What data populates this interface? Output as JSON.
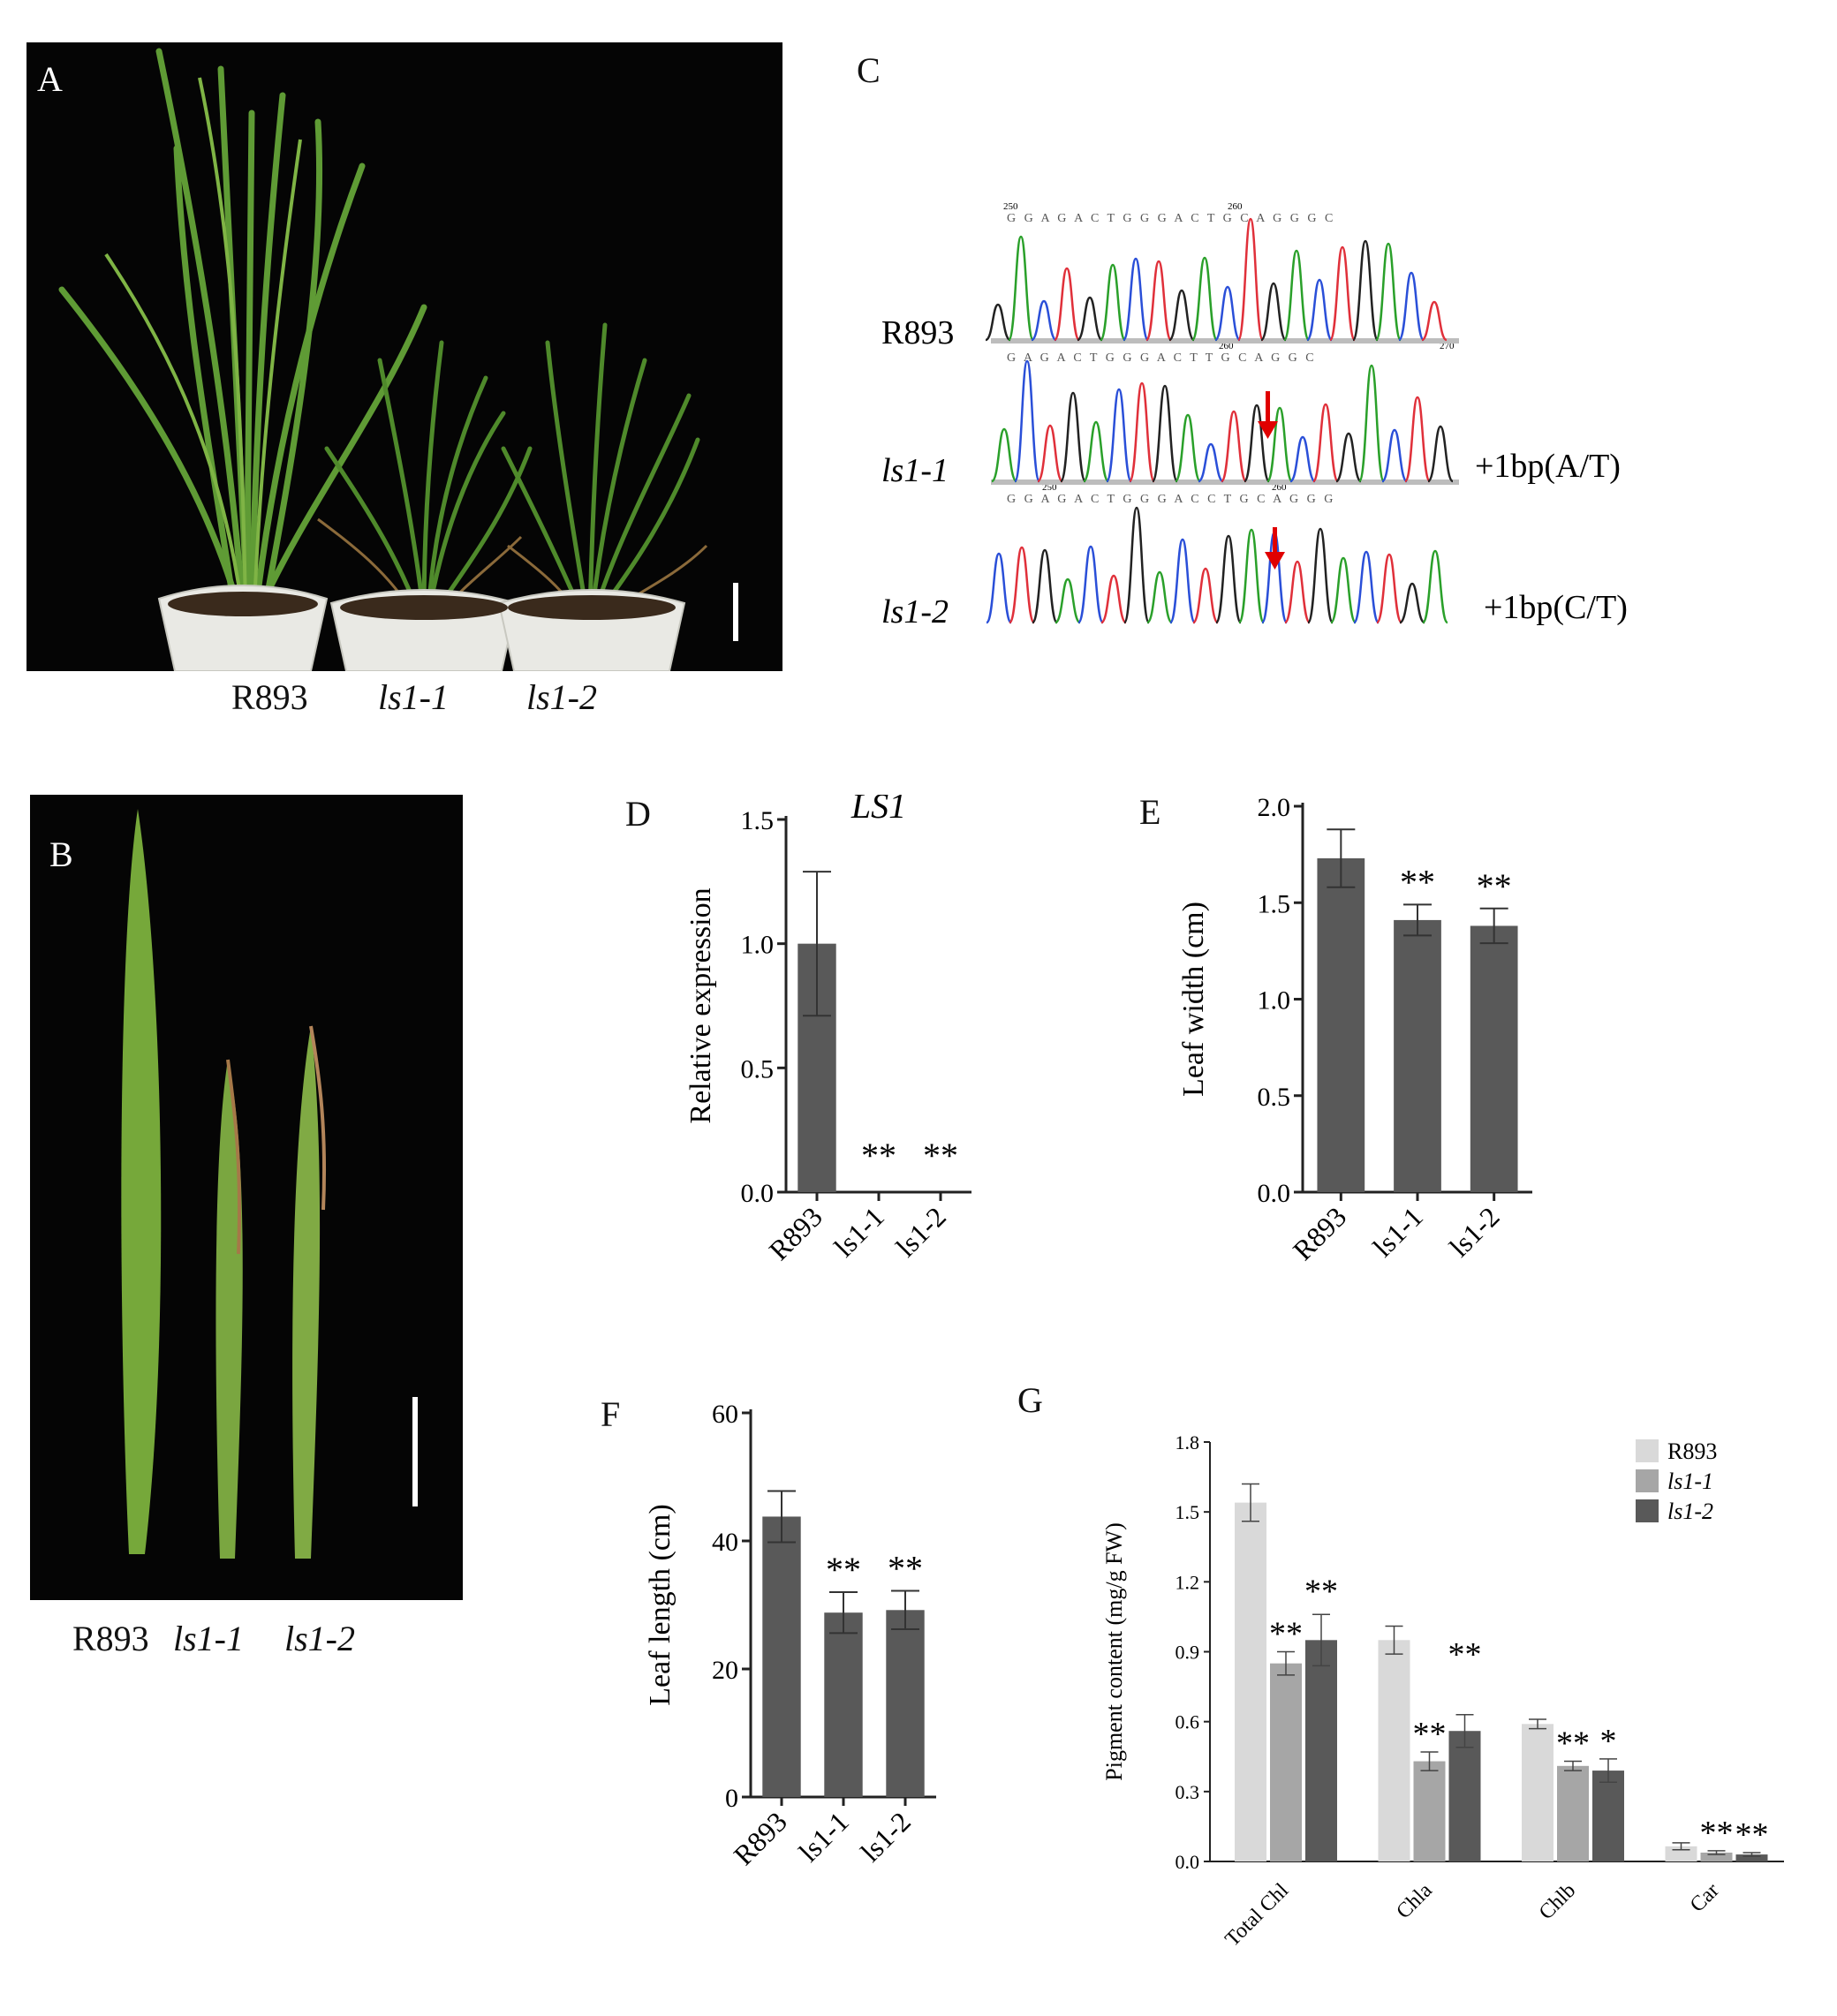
{
  "panels": {
    "A": {
      "letter": "A",
      "labels": [
        "R893",
        "ls1-1",
        "ls1-2"
      ]
    },
    "B": {
      "letter": "B",
      "labels": [
        "R893",
        "ls1-1",
        "ls1-2"
      ]
    },
    "C": {
      "letter": "C",
      "rows": [
        {
          "name": "R893",
          "seq": "G G A G A C T G G G A C T G C A G G G C",
          "pos": [
            "250",
            "260"
          ],
          "note": ""
        },
        {
          "name": "ls1-1",
          "seq": "G A G A C T G G G A C T T G C A G G C",
          "pos": [
            "260",
            "270"
          ],
          "note": "+1bp(A/T)"
        },
        {
          "name": "ls1-2",
          "seq": "G G A G A C T G G G A C C T G C A G G G",
          "pos": [
            "250",
            "260"
          ],
          "note": "+1bp(C/T)"
        }
      ]
    },
    "D": {
      "letter": "D"
    },
    "E": {
      "letter": "E"
    },
    "F": {
      "letter": "F"
    },
    "G": {
      "letter": "G"
    }
  },
  "colors": {
    "bar_dark": "#595959",
    "bar_mid": "#a6a6a6",
    "bar_light": "#d9d9d9",
    "arrow": "#e00000"
  },
  "chart_data": [
    {
      "id": "D",
      "type": "bar",
      "title": "LS1",
      "ylabel": "Relative expression",
      "categories": [
        "R893",
        "ls1-1",
        "ls1-2"
      ],
      "values": [
        1.0,
        0.0,
        0.0
      ],
      "errors": [
        0.29,
        0,
        0
      ],
      "sig": [
        "",
        "**",
        "**"
      ],
      "ylim": [
        0,
        1.5
      ],
      "yticks": [
        "0.0",
        "0.5",
        "1.0",
        "1.5"
      ]
    },
    {
      "id": "E",
      "type": "bar",
      "title": "",
      "ylabel": "Leaf width (cm)",
      "categories": [
        "R893",
        "ls1-1",
        "ls1-2"
      ],
      "values": [
        1.73,
        1.41,
        1.38
      ],
      "errors": [
        0.15,
        0.08,
        0.09
      ],
      "sig": [
        "",
        "**",
        "**"
      ],
      "ylim": [
        0,
        2.0
      ],
      "yticks": [
        "0.0",
        "0.5",
        "1.0",
        "1.5",
        "2.0"
      ]
    },
    {
      "id": "F",
      "type": "bar",
      "title": "",
      "ylabel": "Leaf length (cm)",
      "categories": [
        "R893",
        "ls1-1",
        "ls1-2"
      ],
      "values": [
        43.8,
        28.8,
        29.2
      ],
      "errors": [
        4.0,
        3.2,
        3.0
      ],
      "sig": [
        "",
        "**",
        "**"
      ],
      "ylim": [
        0,
        60
      ],
      "yticks": [
        "0",
        "20",
        "40",
        "60"
      ]
    },
    {
      "id": "G",
      "type": "bar",
      "title": "",
      "ylabel": "Pigment content (mg/g FW)",
      "categories": [
        "Total Chl",
        "Chla",
        "Chlb",
        "Car"
      ],
      "series": [
        {
          "name": "R893",
          "values": [
            1.54,
            0.95,
            0.59,
            0.065
          ],
          "errors": [
            0.08,
            0.06,
            0.02,
            0.015
          ],
          "sig": [
            "",
            "",
            "",
            ""
          ]
        },
        {
          "name": "ls1-1",
          "values": [
            0.85,
            0.43,
            0.41,
            0.038
          ],
          "errors": [
            0.05,
            0.04,
            0.02,
            0.008
          ],
          "sig": [
            "**",
            "**",
            "**",
            "**"
          ]
        },
        {
          "name": "ls1-2",
          "values": [
            0.95,
            0.56,
            0.39,
            0.03
          ],
          "errors": [
            0.11,
            0.07,
            0.05,
            0.008
          ],
          "sig": [
            "**",
            "**",
            "*",
            "**"
          ]
        }
      ],
      "ylim": [
        0,
        1.8
      ],
      "yticks": [
        "0.0",
        "0.3",
        "0.6",
        "0.9",
        "1.2",
        "1.5",
        "1.8"
      ],
      "legend": "top-right"
    }
  ]
}
